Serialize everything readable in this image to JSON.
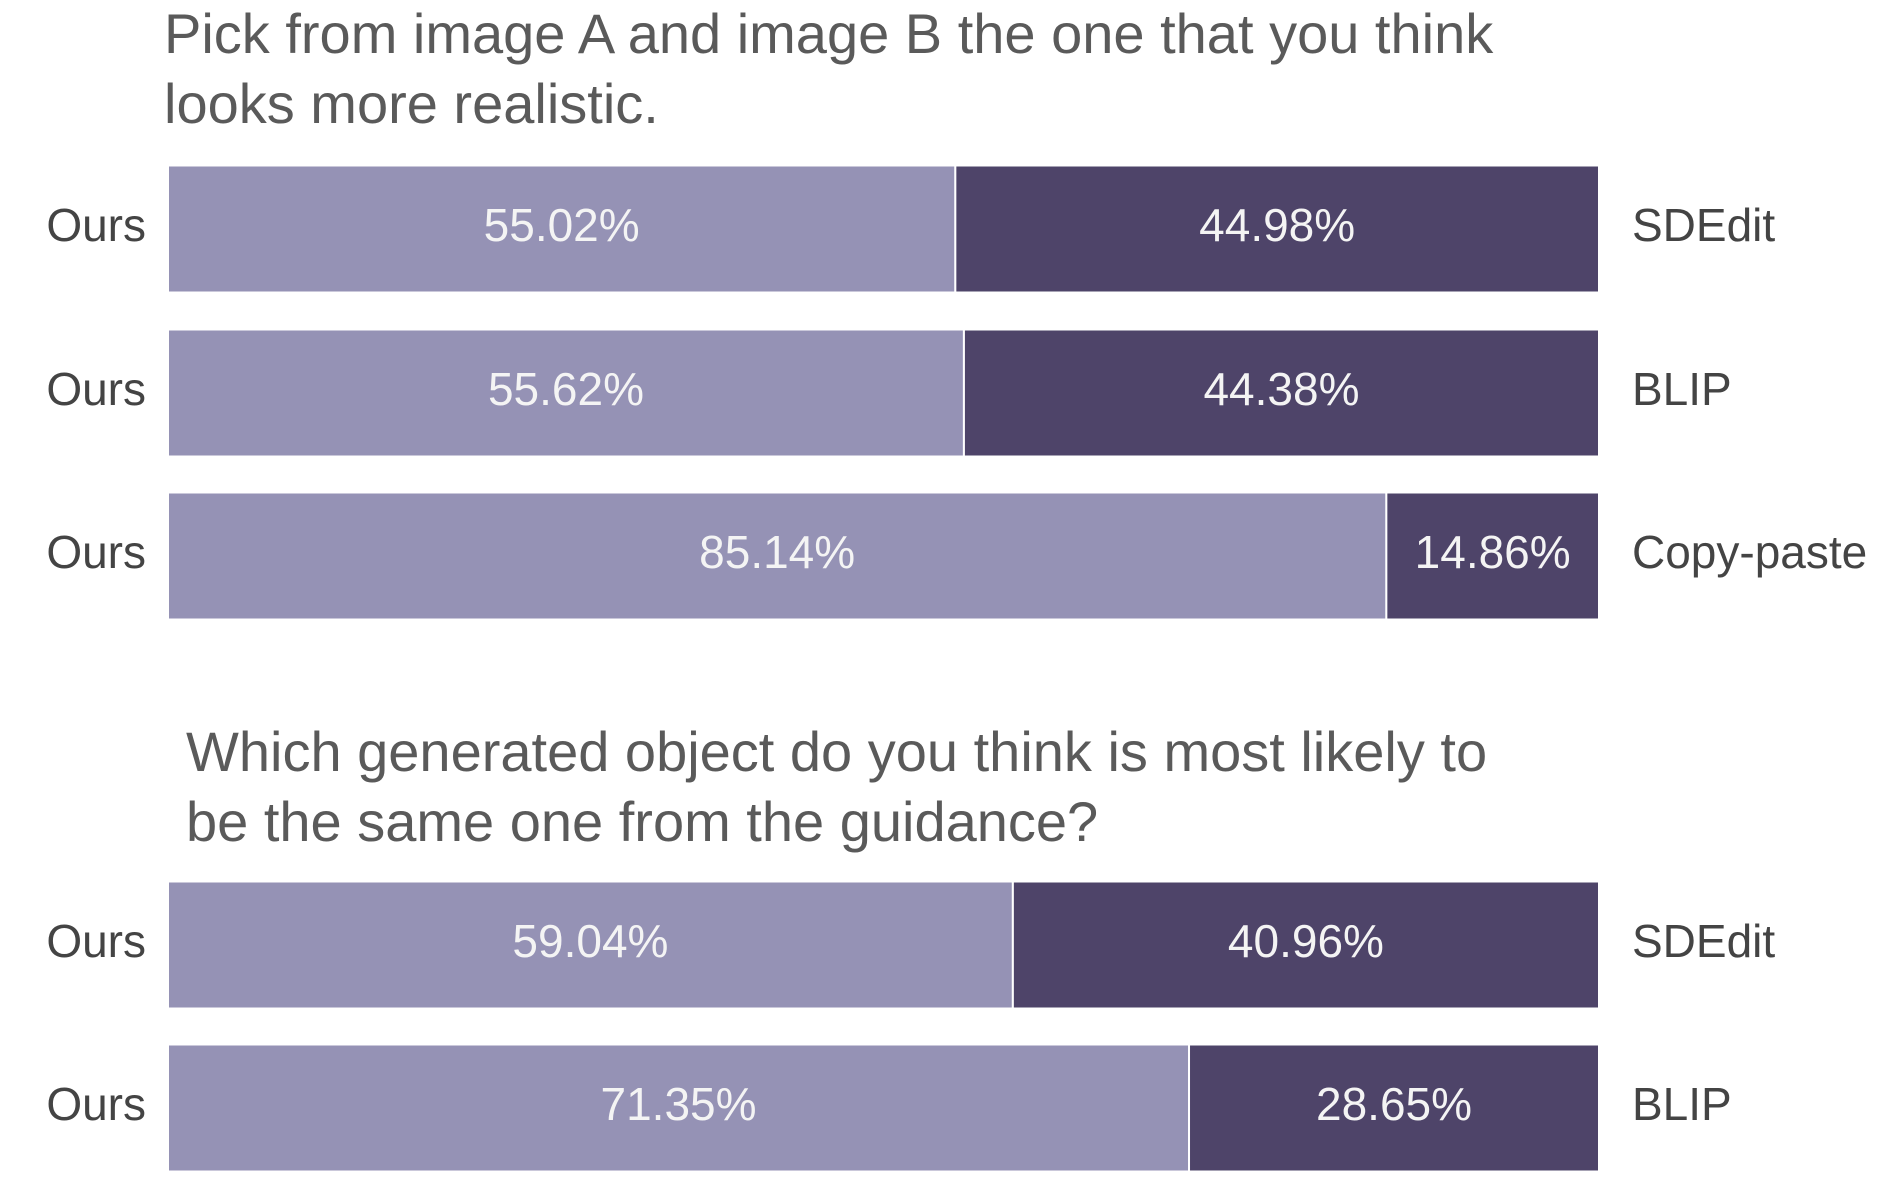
{
  "chart_data": [
    {
      "type": "bar",
      "orientation": "horizontal",
      "stacked": true,
      "title": [
        "Pick from image A and image B the one that you think",
        "looks more realistic."
      ],
      "left_labels": [
        "Ours",
        "Ours",
        "Ours"
      ],
      "right_labels": [
        "SDEdit",
        "BLIP",
        "Copy-paste"
      ],
      "xlim": [
        0,
        100
      ],
      "series": [
        {
          "color": "#9592b5",
          "values": [
            55.02,
            55.62,
            85.14
          ],
          "value_labels": [
            "55.02%",
            "55.62%",
            "85.14%"
          ]
        },
        {
          "color": "#4e4469",
          "values": [
            44.98,
            44.38,
            14.86
          ],
          "value_labels": [
            "44.98%",
            "44.38%",
            "14.86%"
          ]
        }
      ]
    },
    {
      "type": "bar",
      "orientation": "horizontal",
      "stacked": true,
      "title": [
        "Which generated object do you think is most likely to",
        "be the same one from the guidance?"
      ],
      "left_labels": [
        "Ours",
        "Ours"
      ],
      "right_labels": [
        "SDEdit",
        "BLIP"
      ],
      "xlim": [
        0,
        100
      ],
      "series": [
        {
          "color": "#9592b5",
          "values": [
            59.04,
            71.35
          ],
          "value_labels": [
            "59.04%",
            "71.35%"
          ]
        },
        {
          "color": "#4e4469",
          "values": [
            40.96,
            28.65
          ],
          "value_labels": [
            "40.96%",
            "28.65%"
          ]
        }
      ]
    }
  ]
}
